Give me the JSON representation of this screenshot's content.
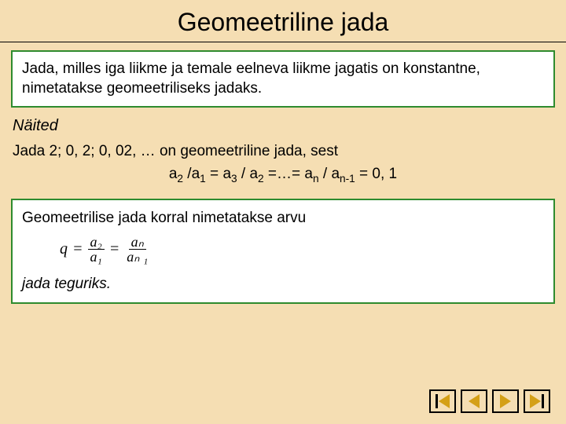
{
  "title": "Geomeetriline jada",
  "definition": "Jada, milles iga liikme ja temale eelneva liikme jagatis on konstantne, nimetatakse geomeetriliseks jadaks.",
  "examples_label": "Näited",
  "example_intro": "Jada 2;  0, 2; 0, 02, …  on geomeetriline jada, sest",
  "example_formula_parts": {
    "a2": "a",
    "s2": "2",
    "slash1": " /",
    "a1": "a",
    "s1": "1",
    "eq1": " = ",
    "a3": "a",
    "s3": "3",
    "slash2": " / ",
    "a2b": "a",
    "s2b": "2",
    "eq2": " =…= ",
    "an": "a",
    "sn": "n",
    "slash3": " / ",
    "anm": "a",
    "snm": "n-1",
    "eq3": " = 0, 1"
  },
  "ratio_intro": "Geomeetrilise jada korral nimetatakse arvu",
  "ratio_formula": {
    "q": "q",
    "eq1": "=",
    "frac1_num": "a₂",
    "frac1_den": "a₁",
    "eq2": "=",
    "frac2_num": "aₙ",
    "frac2_den": "aₙ ₁"
  },
  "factor_text": "jada teguriks.",
  "colors": {
    "background": "#f5deb3",
    "box_border": "#2e8b2e",
    "nav_triangle": "#d4a017"
  }
}
